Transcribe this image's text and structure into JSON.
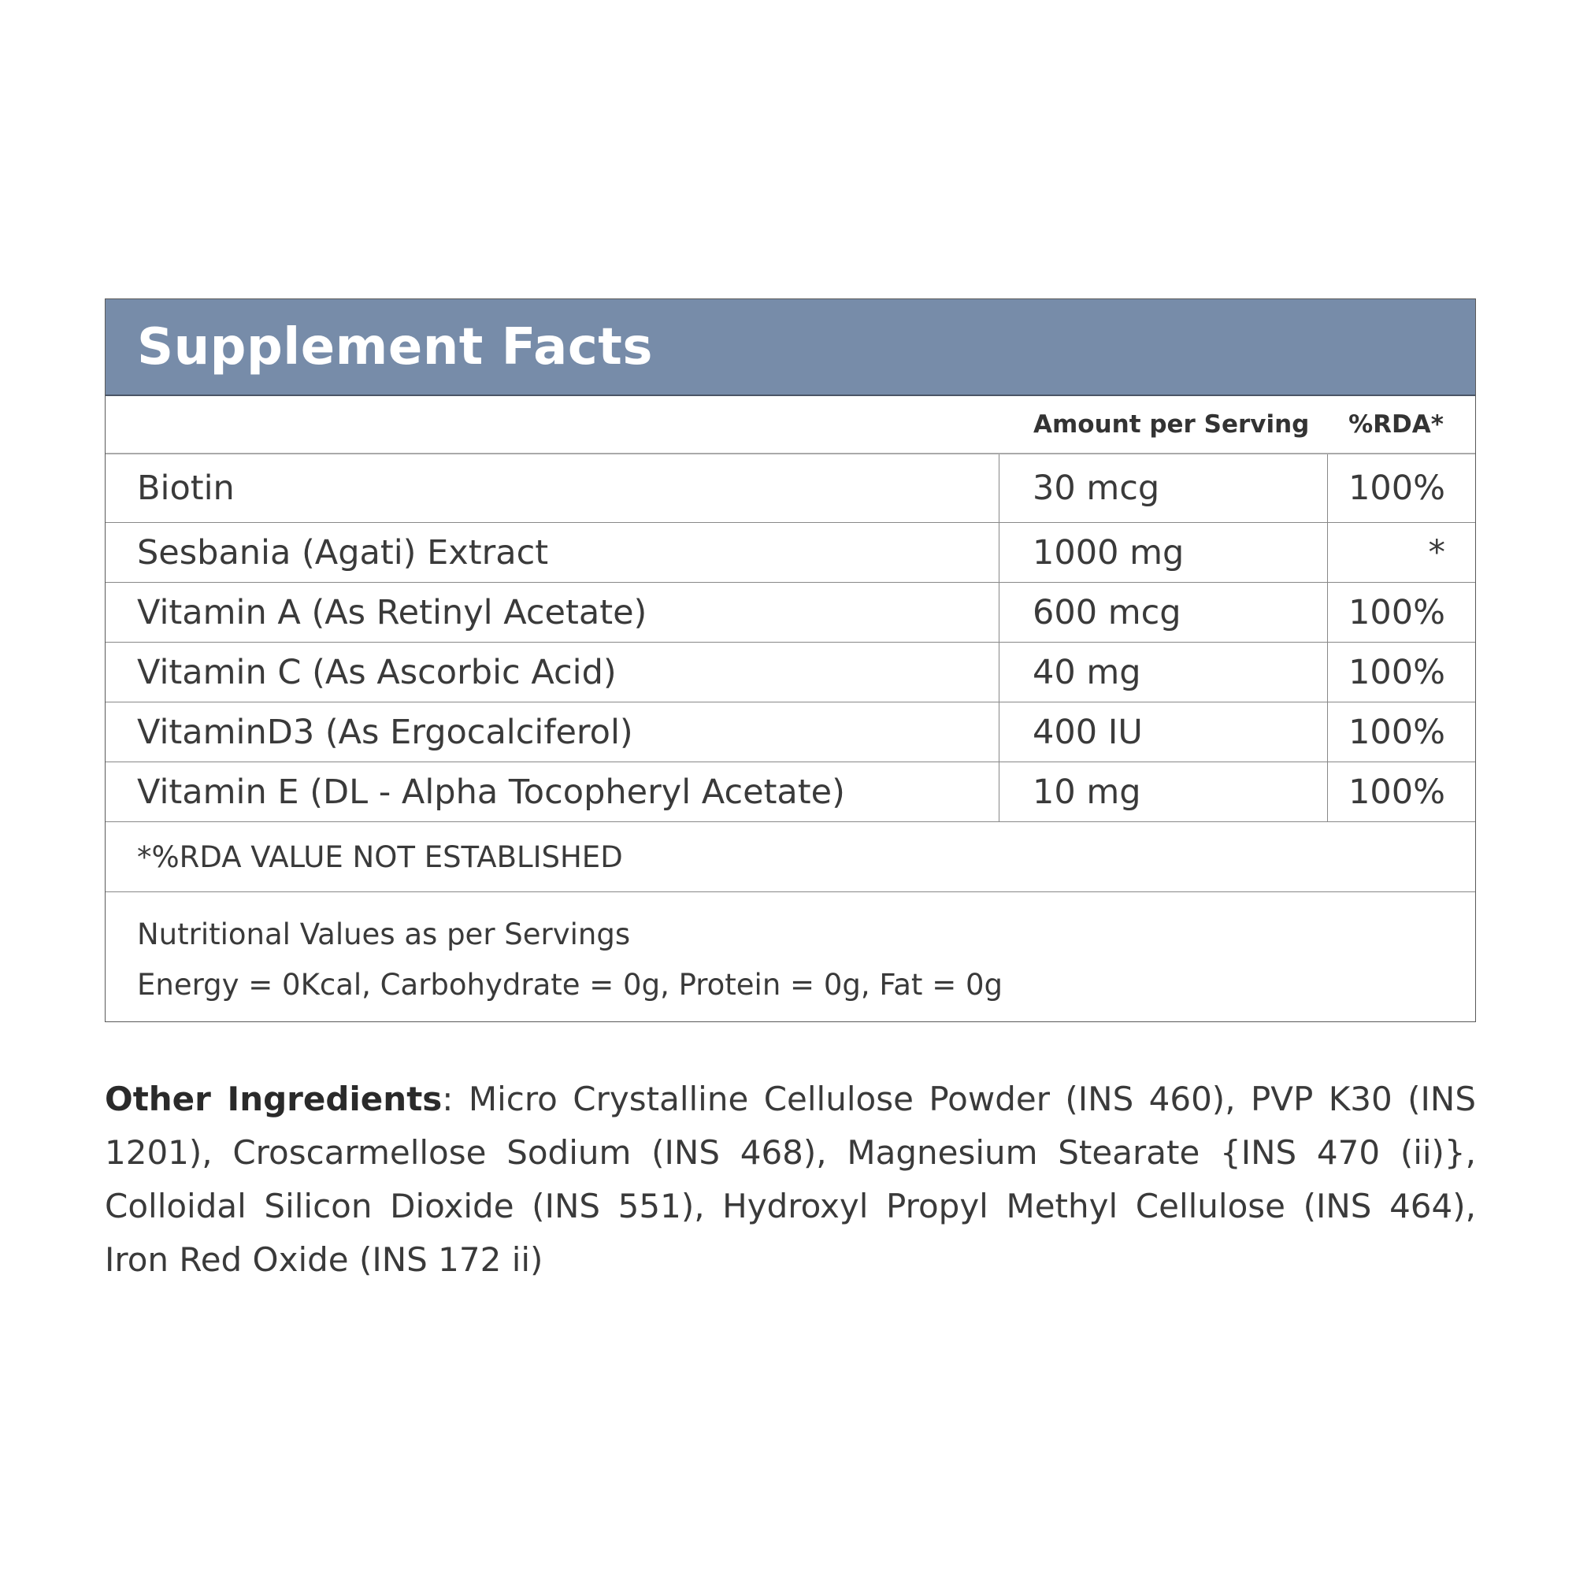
{
  "title": "Supplement Facts",
  "columns": {
    "amount": "Amount per Serving",
    "rda": "%RDA*"
  },
  "rows": [
    {
      "name": "Biotin",
      "amount": "30 mcg",
      "rda": "100%"
    },
    {
      "name": "Sesbania (Agati) Extract",
      "amount": "1000 mg",
      "rda": "*"
    },
    {
      "name": "Vitamin A (As Retinyl Acetate)",
      "amount": "600 mcg",
      "rda": "100%"
    },
    {
      "name": "Vitamin C (As Ascorbic Acid)",
      "amount": "40 mg",
      "rda": "100%"
    },
    {
      "name": "VitaminD3 (As Ergocalciferol)",
      "amount": "400 IU",
      "rda": "100%"
    },
    {
      "name": "Vitamin E (DL - Alpha Tocopheryl Acetate)",
      "amount": "10 mg",
      "rda": "100%"
    }
  ],
  "footnote": "*%RDA VALUE NOT ESTABLISHED",
  "nutrition": {
    "heading": "Nutritional Values as per Servings",
    "values": "Energy = 0Kcal, Carbohydrate = 0g, Protein = 0g, Fat = 0g"
  },
  "other_ingredients": {
    "label": "Other Ingredients",
    "text": ": Micro Crystalline Cellulose Powder (INS 460), PVP K30 (INS 1201), Croscarmellose Sodium (INS 468), Magnesium Stearate {INS 470 (ii)}, Colloidal Silicon Dioxide (INS 551), Hydroxyl Propyl Methyl Cellulose (INS 464), Iron Red Oxide (INS 172 ii)"
  },
  "colors": {
    "header": "#778ca9",
    "text": "#3a3a3a"
  }
}
